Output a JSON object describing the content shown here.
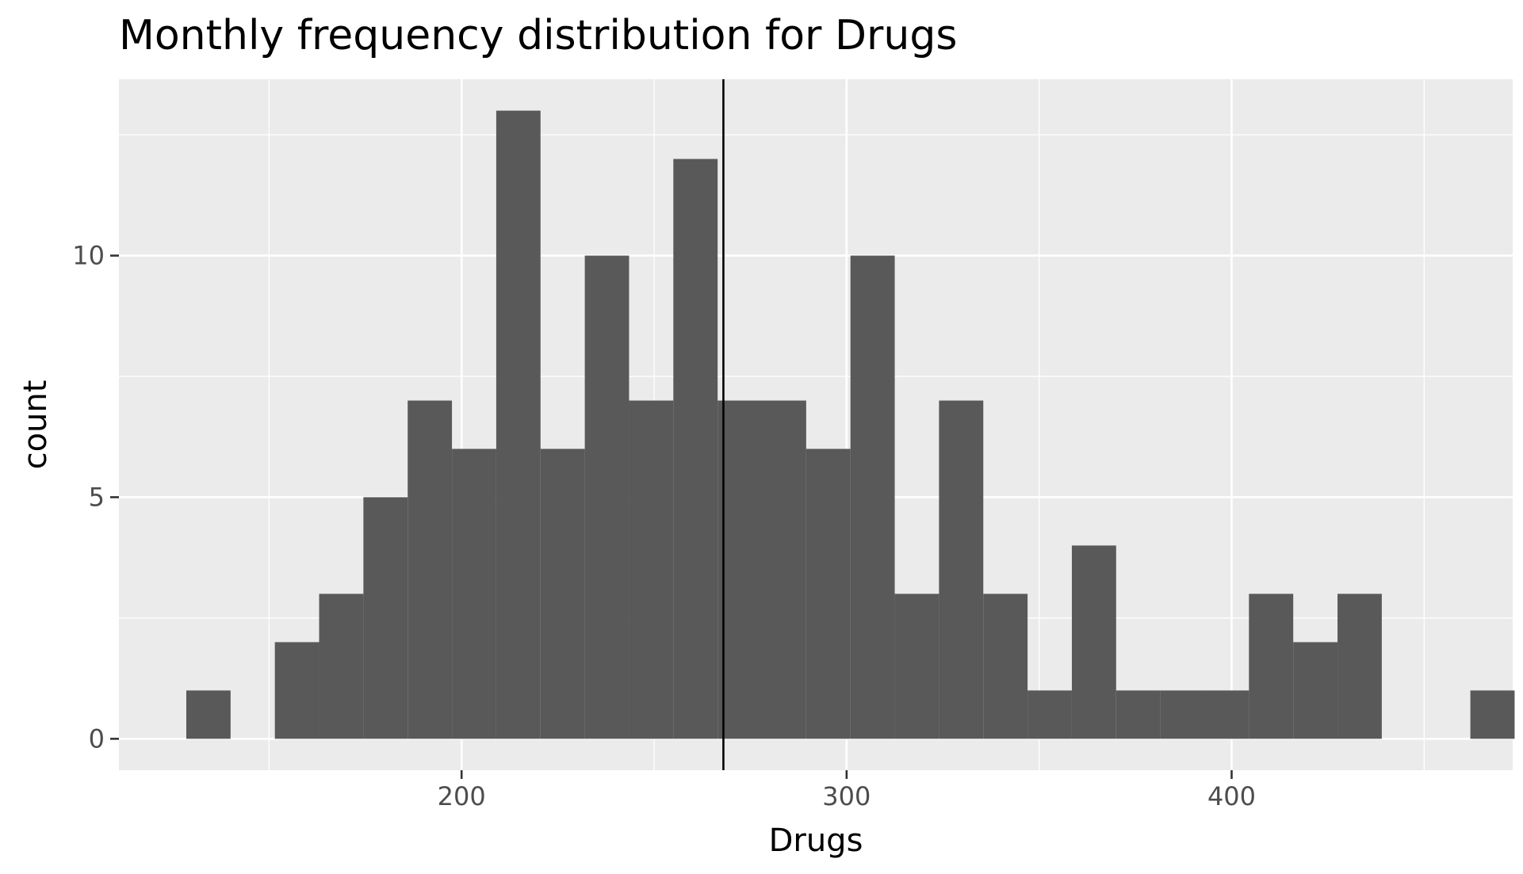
{
  "chart_data": {
    "type": "bar",
    "title": "Monthly frequency distribution for Drugs",
    "xlabel": "Drugs",
    "ylabel": "count",
    "xlim": [
      111,
      473
    ],
    "ylim": [
      -0.65,
      13.65
    ],
    "x_ticks": [
      200,
      300,
      400
    ],
    "x_tick_labels": [
      "200",
      "300",
      "400"
    ],
    "x_minor_ticks": [
      150,
      250,
      350,
      450
    ],
    "y_ticks": [
      0,
      5,
      10
    ],
    "y_tick_labels": [
      "0",
      "5",
      "10"
    ],
    "y_minor_ticks": [
      2.5,
      7.5,
      12.5
    ],
    "bin_width": 11.5,
    "bins": [
      {
        "x0": 128.5,
        "x1": 140.0,
        "count": 1
      },
      {
        "x0": 140.0,
        "x1": 151.5,
        "count": 0
      },
      {
        "x0": 151.5,
        "x1": 163.0,
        "count": 2
      },
      {
        "x0": 163.0,
        "x1": 174.5,
        "count": 3
      },
      {
        "x0": 174.5,
        "x1": 186.0,
        "count": 5
      },
      {
        "x0": 186.0,
        "x1": 197.5,
        "count": 7
      },
      {
        "x0": 197.5,
        "x1": 209.0,
        "count": 6
      },
      {
        "x0": 209.0,
        "x1": 220.5,
        "count": 13
      },
      {
        "x0": 220.5,
        "x1": 232.0,
        "count": 6
      },
      {
        "x0": 232.0,
        "x1": 243.5,
        "count": 10
      },
      {
        "x0": 243.5,
        "x1": 255.0,
        "count": 7
      },
      {
        "x0": 255.0,
        "x1": 266.5,
        "count": 12
      },
      {
        "x0": 266.5,
        "x1": 278.0,
        "count": 7
      },
      {
        "x0": 278.0,
        "x1": 289.5,
        "count": 7
      },
      {
        "x0": 289.5,
        "x1": 301.0,
        "count": 6
      },
      {
        "x0": 301.0,
        "x1": 312.5,
        "count": 10
      },
      {
        "x0": 312.5,
        "x1": 324.0,
        "count": 3
      },
      {
        "x0": 324.0,
        "x1": 335.5,
        "count": 7
      },
      {
        "x0": 335.5,
        "x1": 347.0,
        "count": 3
      },
      {
        "x0": 347.0,
        "x1": 358.5,
        "count": 1
      },
      {
        "x0": 358.5,
        "x1": 370.0,
        "count": 4
      },
      {
        "x0": 370.0,
        "x1": 381.5,
        "count": 1
      },
      {
        "x0": 381.5,
        "x1": 393.0,
        "count": 1
      },
      {
        "x0": 393.0,
        "x1": 404.5,
        "count": 1
      },
      {
        "x0": 404.5,
        "x1": 416.0,
        "count": 3
      },
      {
        "x0": 416.0,
        "x1": 427.5,
        "count": 2
      },
      {
        "x0": 427.5,
        "x1": 439.0,
        "count": 3
      },
      {
        "x0": 439.0,
        "x1": 450.5,
        "count": 0
      },
      {
        "x0": 450.5,
        "x1": 462.0,
        "count": 0
      },
      {
        "x0": 462.0,
        "x1": 473.5,
        "count": 1
      }
    ],
    "vline": {
      "x": 268
    },
    "grid": true,
    "colors": {
      "bar": "#595959",
      "panel": "#ebebeb",
      "grid": "#ffffff",
      "vline": "#000000",
      "tick_text": "#4d4d4d",
      "tick_mark": "#333333"
    }
  }
}
